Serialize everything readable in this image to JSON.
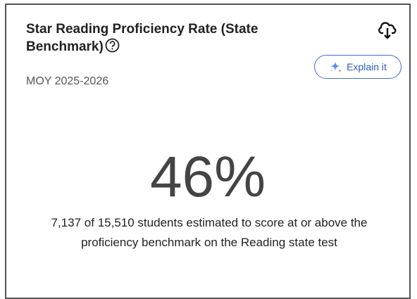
{
  "card": {
    "title": "Star Reading Proficiency Rate (State Benchmark)",
    "subtitle": "MOY 2025-2026",
    "button": "Explain it",
    "kpi": "46%",
    "description": "7,137 of 15,510 students estimated to score at or above the proficiency benchmark on the Reading state test"
  }
}
